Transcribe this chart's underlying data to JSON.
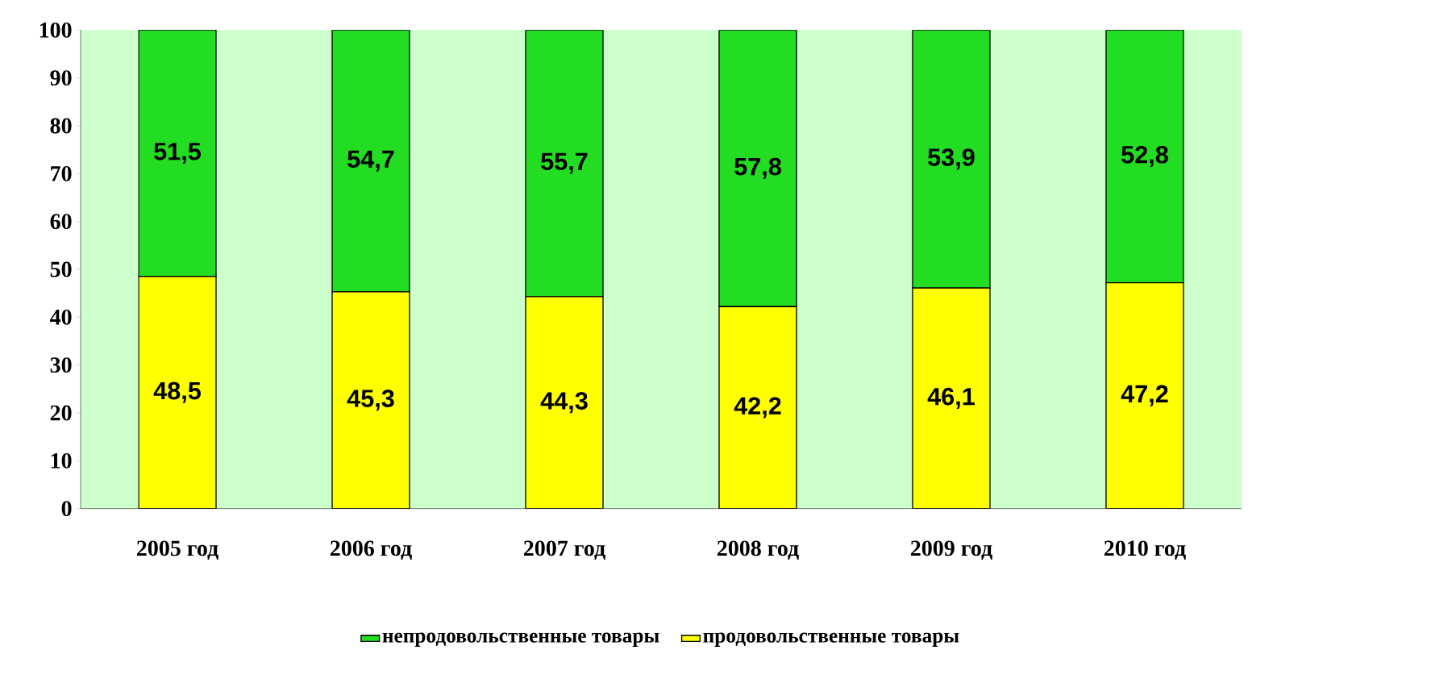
{
  "chart_data": {
    "type": "bar",
    "stacked": true,
    "categories": [
      "2005 год",
      "2006 год",
      "2007 год",
      "2008 год",
      "2009 год",
      "2010 год"
    ],
    "series": [
      {
        "name": "продовольственные товары",
        "color": "#ffff00",
        "values": [
          48.5,
          45.3,
          44.3,
          42.2,
          46.1,
          47.2
        ],
        "value_labels": [
          "48,5",
          "45,3",
          "44,3",
          "42,2",
          "46,1",
          "47,2"
        ]
      },
      {
        "name": "непродовольственные товары",
        "color": "#22dd22",
        "values": [
          51.5,
          54.7,
          55.7,
          57.8,
          53.9,
          52.8
        ],
        "value_labels": [
          "51,5",
          "54,7",
          "55,7",
          "57,8",
          "53,9",
          "52,8"
        ]
      }
    ],
    "ylim": [
      0,
      100
    ],
    "yticks": [
      0,
      10,
      20,
      30,
      40,
      50,
      60,
      70,
      80,
      90,
      100
    ],
    "legend": "bottom"
  }
}
